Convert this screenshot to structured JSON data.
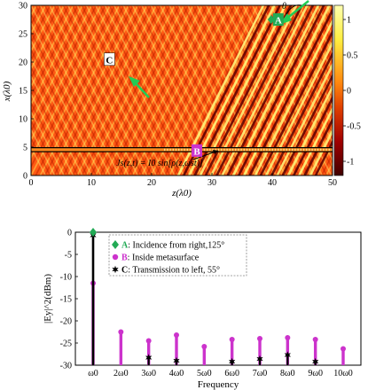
{
  "chart_data": [
    {
      "type": "heatmap",
      "title": "",
      "xlabel": "z(λ0)",
      "ylabel": "x(λ0)",
      "xlim": [
        0,
        50
      ],
      "ylim": [
        0,
        30
      ],
      "x_ticks": [
        0,
        10,
        20,
        30,
        40,
        50
      ],
      "y_ticks": [
        0,
        5,
        10,
        15,
        20,
        25,
        30
      ],
      "colorbar": {
        "range": [
          -1.2,
          1.2
        ],
        "ticks": [
          1,
          0.5,
          0,
          -0.5,
          -1
        ]
      },
      "metasurface_band": {
        "x_range": [
          4.2,
          4.9
        ],
        "z_range": [
          0,
          50
        ]
      },
      "source_equation": "Js(z,t) = I0 sin[ρ(z,ωst)]",
      "angle_label": "θ",
      "annotations": [
        {
          "label": "A",
          "z": 41,
          "x": 27.5,
          "color": "#22aa55",
          "description": "Incidence from right,125°"
        },
        {
          "label": "B",
          "z": 27.5,
          "x": 4.4,
          "color": "#cc33cc",
          "description": "Inside metasurface"
        },
        {
          "label": "C",
          "z": 13,
          "x": 20.5,
          "color": "#000000",
          "description": "Transmission to left, 55°"
        }
      ],
      "colors": {
        "high": "#ffff70",
        "mid": "#ff7f00",
        "low": "#4a0000",
        "background": "#ff5a14"
      }
    },
    {
      "type": "bar",
      "title": "",
      "xlabel": "Frequency",
      "ylabel": "|Ey|^2(dBm)",
      "ylim": [
        -30,
        0
      ],
      "y_ticks": [
        0,
        -5,
        -10,
        -15,
        -20,
        -25,
        -30
      ],
      "categories": [
        "ω0",
        "2ω0",
        "3ω0",
        "4ω0",
        "5ω0",
        "6ω0",
        "7ω0",
        "8ω0",
        "9ω0",
        "10ω0"
      ],
      "series": [
        {
          "name": "A",
          "marker": "diamond",
          "color": "#22aa55",
          "values": [
            0,
            null,
            null,
            null,
            null,
            null,
            null,
            null,
            null,
            null
          ]
        },
        {
          "name": "B",
          "marker": "circle",
          "color": "#cc33cc",
          "values": [
            -11.5,
            -22.5,
            -24.5,
            -23.2,
            -25.8,
            -24.2,
            -24.0,
            -23.8,
            -24.2,
            -26.3
          ]
        },
        {
          "name": "C",
          "marker": "star",
          "color": "#000000",
          "values": [
            -0.7,
            null,
            -28.3,
            -29.0,
            null,
            -29.2,
            -28.6,
            -27.7,
            -29.2,
            null
          ]
        }
      ],
      "legend": {
        "placement": "top-right",
        "entries": [
          {
            "key": "A",
            "label": "A",
            "text": ": Incidence from right,125°"
          },
          {
            "key": "B",
            "label": "B",
            "text": ": Inside metasurface"
          },
          {
            "key": "C",
            "label": "C",
            "text": ": Transmission to left, 55°"
          }
        ]
      }
    }
  ]
}
